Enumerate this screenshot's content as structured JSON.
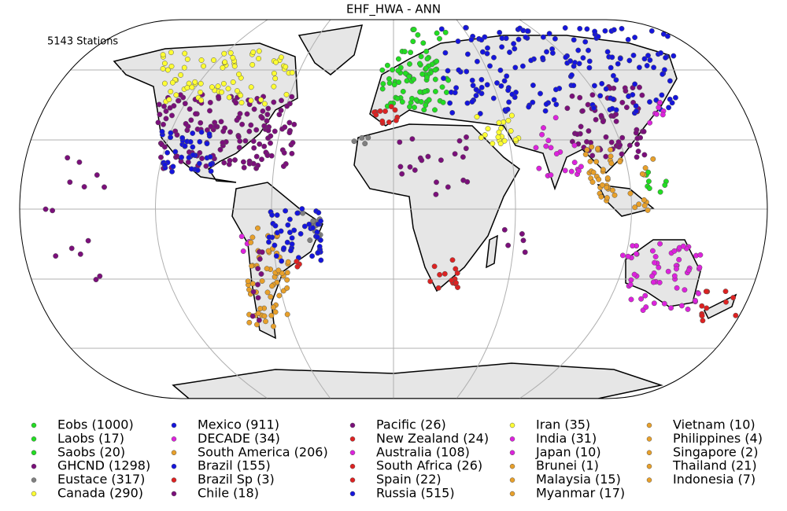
{
  "map": {
    "title": "EHF_HWA - ANN",
    "annotation": "5143 Stations",
    "legend": [
      {
        "label": "Eobs (1000)",
        "color": "#22dd22"
      },
      {
        "label": "Laobs (17)",
        "color": "#22dd22"
      },
      {
        "label": "Saobs (20)",
        "color": "#22dd22"
      },
      {
        "label": "GHCND (1298)",
        "color": "#7b0f7b"
      },
      {
        "label": "Eustace (317)",
        "color": "#808080"
      },
      {
        "label": "Canada (290)",
        "color": "#ffff33"
      },
      {
        "label": "Mexico (911)",
        "color": "#1515dd"
      },
      {
        "label": "DECADE (34)",
        "color": "#dd22dd"
      },
      {
        "label": "South America (206)",
        "color": "#e8a02a"
      },
      {
        "label": "Brazil (155)",
        "color": "#1515dd"
      },
      {
        "label": "Brazil Sp (3)",
        "color": "#dd2222"
      },
      {
        "label": "Chile (18)",
        "color": "#7b0f7b"
      },
      {
        "label": "Pacific (26)",
        "color": "#7b0f7b"
      },
      {
        "label": "New Zealand (24)",
        "color": "#dd2222"
      },
      {
        "label": "Australia (108)",
        "color": "#dd22dd"
      },
      {
        "label": "South Africa (26)",
        "color": "#dd2222"
      },
      {
        "label": "Spain (22)",
        "color": "#dd2222"
      },
      {
        "label": "Russia (515)",
        "color": "#1515dd"
      },
      {
        "label": "Iran (35)",
        "color": "#ffff33"
      },
      {
        "label": "India (31)",
        "color": "#dd22dd"
      },
      {
        "label": "Japan (10)",
        "color": "#dd22dd"
      },
      {
        "label": "Brunei (1)",
        "color": "#e8a02a"
      },
      {
        "label": "Malaysia (15)",
        "color": "#e8a02a"
      },
      {
        "label": "Myanmar (17)",
        "color": "#e8a02a"
      },
      {
        "label": "Vietnam (10)",
        "color": "#e8a02a"
      },
      {
        "label": "Philippines (4)",
        "color": "#e8a02a"
      },
      {
        "label": "Singapore (2)",
        "color": "#e8a02a"
      },
      {
        "label": "Thailand (21)",
        "color": "#e8a02a"
      },
      {
        "label": "Indonesia (7)",
        "color": "#e8a02a"
      }
    ]
  }
}
